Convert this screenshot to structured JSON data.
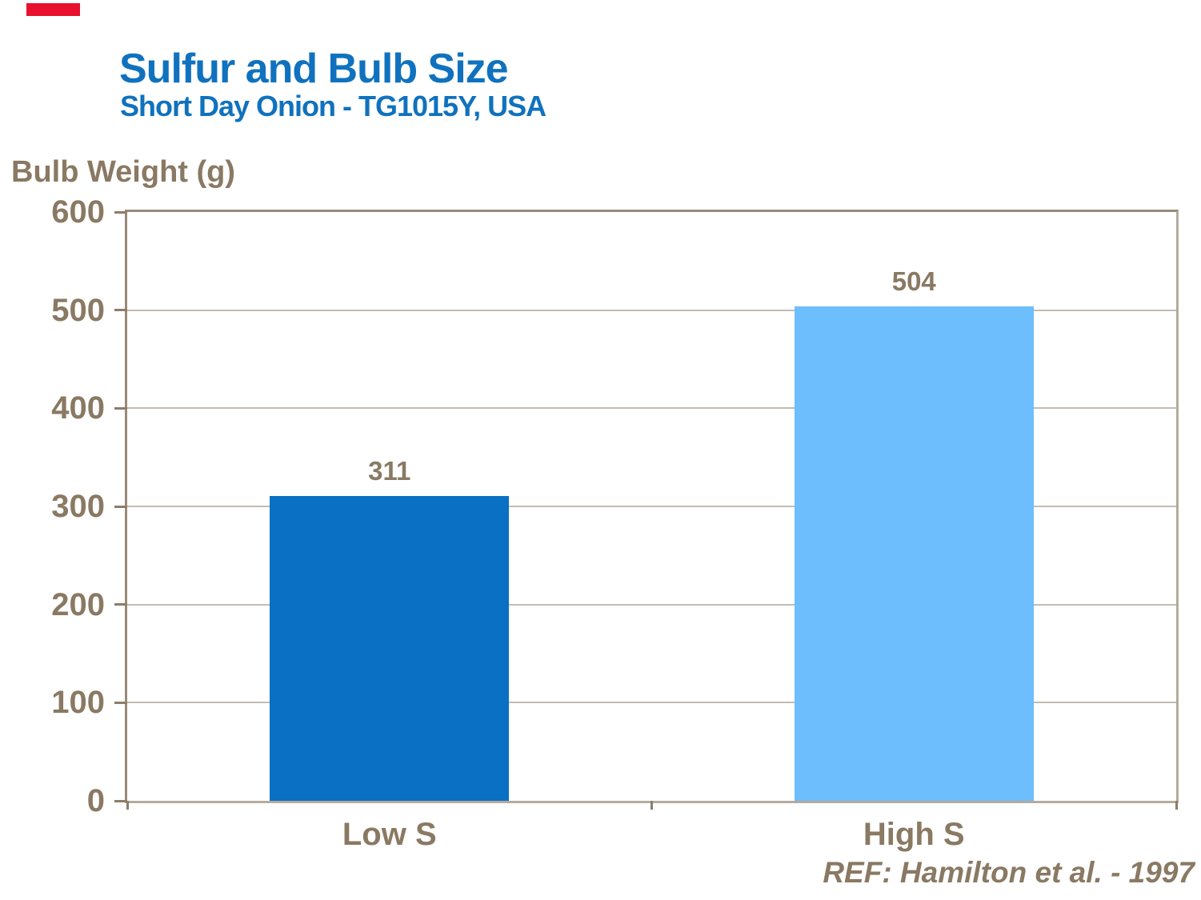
{
  "accent": {
    "color": "#e8112d"
  },
  "header": {
    "title": "Sulfur and Bulb Size",
    "subtitle": "Short Day Onion - TG1015Y, USA",
    "title_color": "#1072be"
  },
  "chart_data": {
    "type": "bar",
    "title": "Sulfur and Bulb Size",
    "subtitle": "Short Day Onion - TG1015Y, USA",
    "ylabel": "Bulb Weight (g)",
    "xlabel": "",
    "categories": [
      "Low S",
      "High S"
    ],
    "values": [
      311,
      504
    ],
    "data_labels": [
      "311",
      "504"
    ],
    "bar_colors": [
      "#0a70c4",
      "#6cbefc"
    ],
    "ylim": [
      0,
      600
    ],
    "yticks": [
      600,
      500,
      400,
      300,
      200,
      100,
      0
    ],
    "grid": "horizontal",
    "legend_position": "none"
  },
  "footer": {
    "reference": "REF: Hamilton et al. - 1997"
  },
  "colors": {
    "axis_text": "#8a7963",
    "frame": "#a79b8c",
    "gridline": "#c2bcb2",
    "tick": "#8c7d69"
  }
}
